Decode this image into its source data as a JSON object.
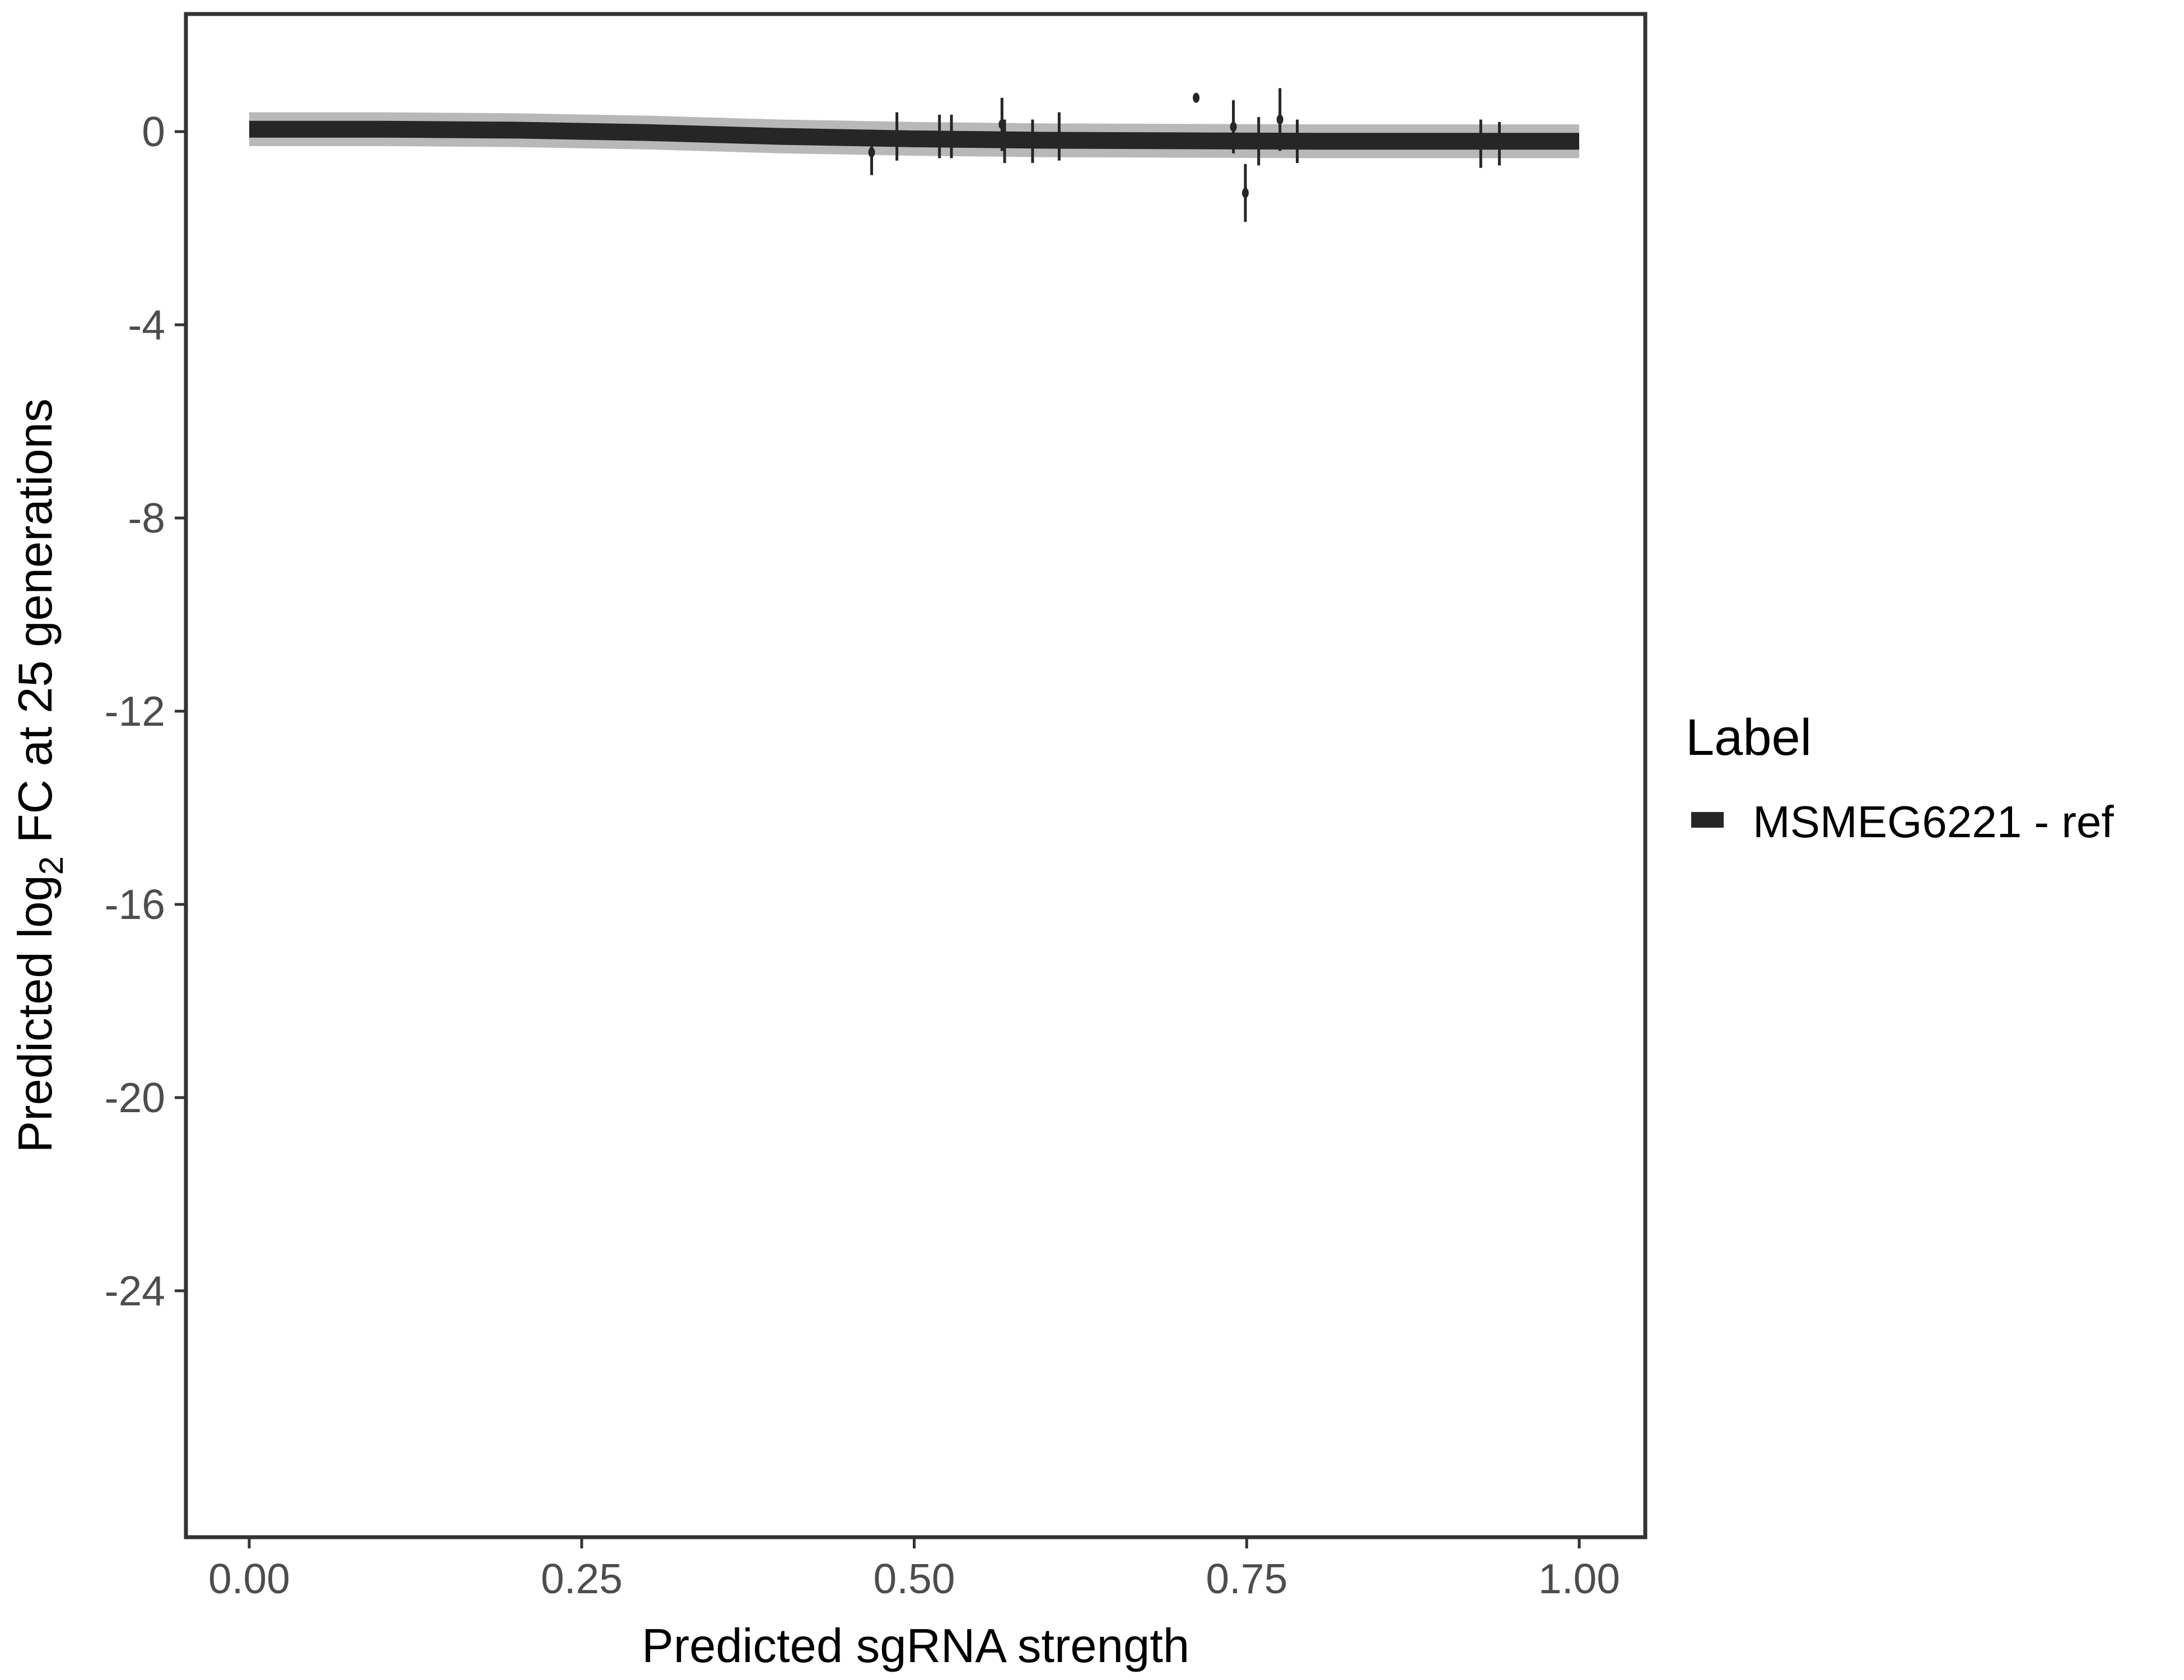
{
  "chart_data": {
    "type": "scatter",
    "xlabel": "Predicted sgRNA strength",
    "ylabel_parts": {
      "pre": "Predicted  log",
      "sub": "2",
      "post": " FC at 25 generations"
    },
    "xlim": [
      -0.05,
      1.05
    ],
    "ylim": [
      -29.1,
      2.4
    ],
    "x_ticks": [
      "0.00",
      "0.25",
      "0.50",
      "0.75",
      "1.00"
    ],
    "y_ticks": [
      "0",
      "-4",
      "-8",
      "-12",
      "-16",
      "-20",
      "-24"
    ],
    "grid": false,
    "legend": {
      "title": "Label",
      "position": "right",
      "entries": [
        "MSMEG6221 - ref"
      ]
    },
    "colors": {
      "series": "#262626",
      "ribbon": "#a6a6a6"
    },
    "fit_line": {
      "x": [
        0,
        0.1,
        0.2,
        0.3,
        0.4,
        0.5,
        0.6,
        0.7,
        0.8,
        0.9,
        1.0
      ],
      "y": [
        0.05,
        0.05,
        0.03,
        -0.02,
        -0.1,
        -0.15,
        -0.18,
        -0.19,
        -0.2,
        -0.2,
        -0.2
      ],
      "ribbon_halfwidth": 0.35
    },
    "points": [
      {
        "x": 0.468,
        "y": -0.43,
        "err": 0.47
      },
      {
        "x": 0.487,
        "y": -0.1,
        "err": 0.5
      },
      {
        "x": 0.519,
        "y": -0.1,
        "err": 0.45
      },
      {
        "x": 0.528,
        "y": -0.1,
        "err": 0.45
      },
      {
        "x": 0.566,
        "y": 0.15,
        "err": 0.55
      },
      {
        "x": 0.568,
        "y": -0.2,
        "err": 0.45
      },
      {
        "x": 0.589,
        "y": -0.2,
        "err": 0.45
      },
      {
        "x": 0.609,
        "y": -0.1,
        "err": 0.5
      },
      {
        "x": 0.712,
        "y": 0.7,
        "err": 0.05
      },
      {
        "x": 0.74,
        "y": 0.1,
        "err": 0.55
      },
      {
        "x": 0.749,
        "y": -1.27,
        "err": 0.6
      },
      {
        "x": 0.759,
        "y": -0.2,
        "err": 0.5
      },
      {
        "x": 0.775,
        "y": 0.25,
        "err": 0.65
      },
      {
        "x": 0.788,
        "y": -0.2,
        "err": 0.45
      },
      {
        "x": 0.926,
        "y": -0.25,
        "err": 0.5
      },
      {
        "x": 0.94,
        "y": -0.25,
        "err": 0.45
      }
    ]
  }
}
